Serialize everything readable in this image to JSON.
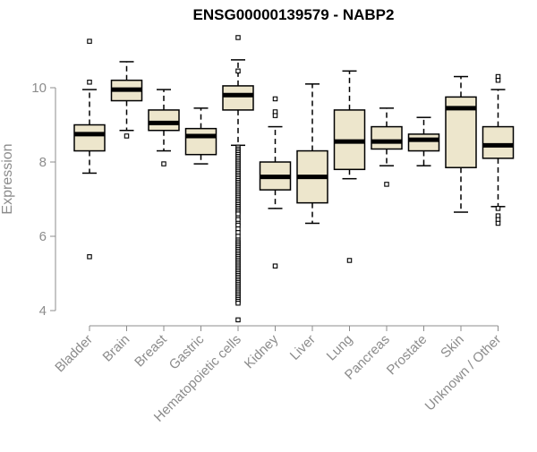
{
  "chart_data": {
    "type": "boxplot",
    "title": "ENSG00000139579 - NABP2",
    "xlabel": "",
    "ylabel": "Expression",
    "ylim": [
      3.6,
      11.6
    ],
    "yticks": [
      4,
      6,
      8,
      10
    ],
    "colors": {
      "box_fill": "#ede6cc",
      "box_stroke": "#000000",
      "median": "#000000",
      "axis": "#8c8c8c",
      "text": "#8c8c8c",
      "title": "#000000"
    },
    "categories": [
      "Bladder",
      "Brain",
      "Breast",
      "Gastric",
      "Hematopoietic cells",
      "Kidney",
      "Liver",
      "Lung",
      "Pancreas",
      "Prostate",
      "Skin",
      "Unknown / Other"
    ],
    "boxes": [
      {
        "name": "Bladder",
        "whisker_low": 7.7,
        "q1": 8.3,
        "median": 8.75,
        "q3": 9.0,
        "whisker_high": 9.95,
        "outliers": [
          11.25,
          10.15,
          5.45
        ]
      },
      {
        "name": "Brain",
        "whisker_low": 8.85,
        "q1": 9.65,
        "median": 9.95,
        "q3": 10.2,
        "whisker_high": 10.7,
        "outliers": [
          8.7
        ]
      },
      {
        "name": "Breast",
        "whisker_low": 8.3,
        "q1": 8.85,
        "median": 9.05,
        "q3": 9.4,
        "whisker_high": 9.95,
        "outliers": [
          7.95
        ]
      },
      {
        "name": "Gastric",
        "whisker_low": 7.95,
        "q1": 8.2,
        "median": 8.7,
        "q3": 8.9,
        "whisker_high": 9.45,
        "outliers": []
      },
      {
        "name": "Hematopoietic cells",
        "whisker_low": 8.45,
        "q1": 9.4,
        "median": 9.8,
        "q3": 10.05,
        "whisker_high": 10.75,
        "outliers": [
          11.35,
          10.45,
          8.4,
          8.35,
          8.3,
          8.25,
          8.2,
          8.15,
          8.1,
          8.05,
          8.0,
          7.95,
          7.9,
          7.85,
          7.8,
          7.75,
          7.7,
          7.65,
          7.6,
          7.55,
          7.5,
          7.45,
          7.4,
          7.35,
          7.3,
          7.25,
          7.2,
          7.15,
          7.1,
          7.05,
          7.0,
          6.95,
          6.9,
          6.85,
          6.8,
          6.75,
          6.7,
          6.65,
          6.6,
          6.5,
          6.45,
          6.35,
          6.3,
          6.2,
          6.1,
          6.0,
          5.9,
          5.85,
          5.8,
          5.75,
          5.7,
          5.65,
          5.6,
          5.55,
          5.5,
          5.45,
          5.4,
          5.35,
          5.3,
          5.25,
          5.2,
          5.15,
          5.1,
          5.05,
          5.0,
          4.95,
          4.9,
          4.85,
          4.8,
          4.75,
          4.7,
          4.65,
          4.6,
          4.55,
          4.5,
          4.45,
          4.4,
          4.35,
          4.3,
          4.25,
          4.2,
          3.75
        ]
      },
      {
        "name": "Kidney",
        "whisker_low": 6.75,
        "q1": 7.25,
        "median": 7.6,
        "q3": 8.0,
        "whisker_high": 8.95,
        "outliers": [
          9.7,
          9.35,
          9.25,
          5.2
        ]
      },
      {
        "name": "Liver",
        "whisker_low": 6.35,
        "q1": 6.9,
        "median": 7.6,
        "q3": 8.3,
        "whisker_high": 10.1,
        "outliers": []
      },
      {
        "name": "Lung",
        "whisker_low": 7.55,
        "q1": 7.8,
        "median": 8.55,
        "q3": 9.4,
        "whisker_high": 10.45,
        "outliers": [
          5.35
        ]
      },
      {
        "name": "Pancreas",
        "whisker_low": 7.9,
        "q1": 8.35,
        "median": 8.55,
        "q3": 8.95,
        "whisker_high": 9.45,
        "outliers": [
          7.4
        ]
      },
      {
        "name": "Prostate",
        "whisker_low": 7.9,
        "q1": 8.3,
        "median": 8.6,
        "q3": 8.75,
        "whisker_high": 9.2,
        "outliers": []
      },
      {
        "name": "Skin",
        "whisker_low": 6.65,
        "q1": 7.85,
        "median": 9.45,
        "q3": 9.75,
        "whisker_high": 10.3,
        "outliers": []
      },
      {
        "name": "Unknown / Other",
        "whisker_low": 6.8,
        "q1": 8.1,
        "median": 8.45,
        "q3": 8.95,
        "whisker_high": 9.95,
        "outliers": [
          10.3,
          10.2,
          6.75,
          6.55,
          6.45,
          6.35
        ]
      }
    ]
  }
}
